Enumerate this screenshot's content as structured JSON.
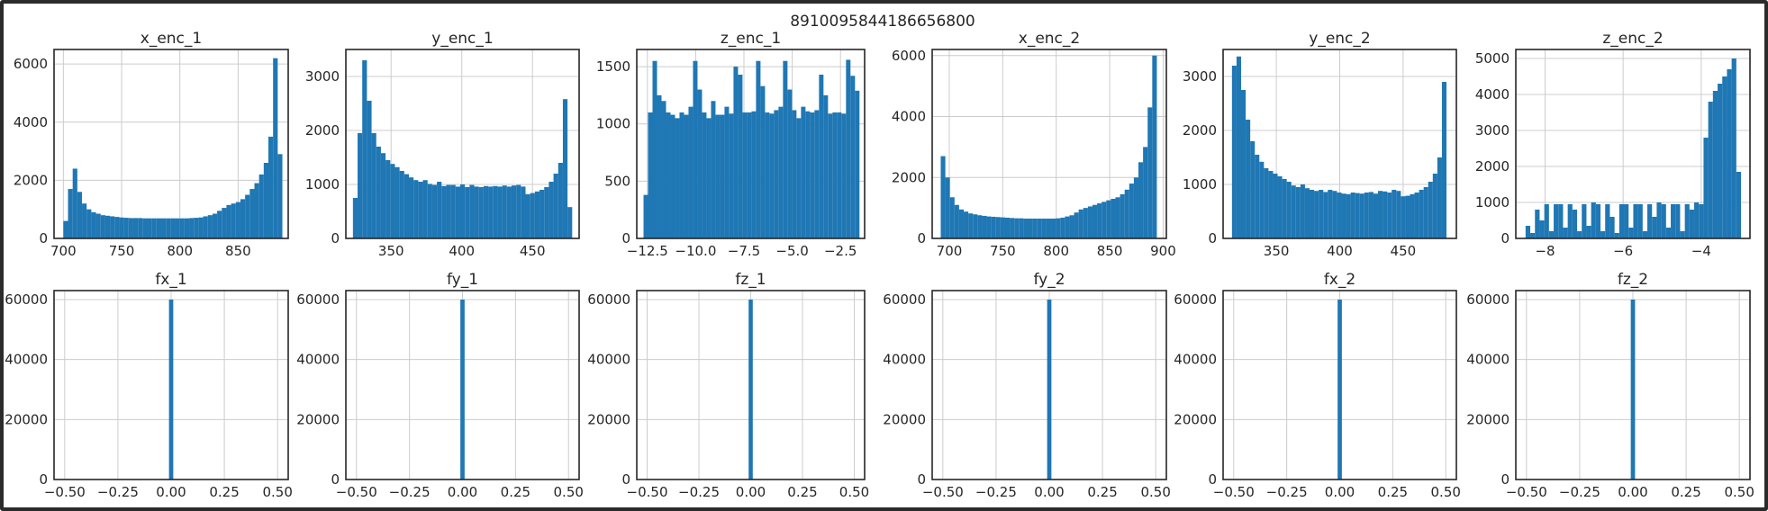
{
  "figure": {
    "suptitle": "8910095844186656800",
    "bar_color": "#1f77b4",
    "grid_color": "#cccccc",
    "axis_color": "#262626"
  },
  "chart_data": [
    {
      "type": "bar",
      "title": "x_enc_1",
      "grid": true,
      "x": [
        700,
        704,
        708,
        712,
        716,
        720,
        724,
        728,
        732,
        736,
        740,
        744,
        748,
        752,
        756,
        760,
        764,
        768,
        772,
        776,
        780,
        784,
        788,
        792,
        796,
        800,
        804,
        808,
        812,
        816,
        820,
        824,
        828,
        832,
        836,
        840,
        844,
        848,
        852,
        856,
        860,
        864,
        868,
        872,
        876,
        880,
        884
      ],
      "values": [
        600,
        1700,
        2400,
        1600,
        1200,
        1000,
        900,
        850,
        800,
        780,
        760,
        740,
        720,
        710,
        700,
        700,
        700,
        690,
        690,
        690,
        690,
        690,
        690,
        690,
        690,
        690,
        690,
        700,
        710,
        720,
        760,
        800,
        850,
        950,
        1050,
        1150,
        1200,
        1250,
        1350,
        1500,
        1700,
        1900,
        2200,
        2600,
        3500,
        6200,
        2900
      ],
      "bin_width": 4,
      "xlim": [
        692,
        893
      ],
      "ylim": [
        0,
        6500
      ],
      "xticks": [
        700,
        750,
        800,
        850
      ],
      "xticklabels": [
        "700",
        "750",
        "800",
        "850"
      ],
      "yticks": [
        0,
        2000,
        4000,
        6000
      ],
      "yticklabels": [
        "0",
        "2000",
        "4000",
        "6000"
      ]
    },
    {
      "type": "bar",
      "title": "y_enc_1",
      "grid": true,
      "x": [
        323,
        326.3,
        329.6,
        332.9,
        336.2,
        339.5,
        342.8,
        346.1,
        349.4,
        352.7,
        356,
        359.3,
        362.6,
        365.9,
        369.2,
        372.5,
        375.8,
        379.1,
        382.4,
        385.7,
        389,
        392.3,
        395.6,
        398.9,
        402.2,
        405.5,
        408.8,
        412.1,
        415.4,
        418.7,
        422,
        425.3,
        428.6,
        431.9,
        435.2,
        438.5,
        441.8,
        445.1,
        448.4,
        451.7,
        455,
        458.3,
        461.6,
        464.9,
        468.2,
        471.5,
        474.8
      ],
      "values": [
        750,
        1950,
        3300,
        2550,
        1950,
        1700,
        1580,
        1450,
        1380,
        1320,
        1250,
        1190,
        1130,
        1080,
        1050,
        1080,
        1010,
        990,
        1050,
        970,
        990,
        990,
        960,
        1000,
        950,
        990,
        960,
        950,
        970,
        960,
        970,
        960,
        980,
        960,
        980,
        990,
        960,
        820,
        840,
        870,
        900,
        950,
        1050,
        1200,
        1400,
        2580,
        580
      ],
      "bin_width": 3.3,
      "xlim": [
        318,
        483
      ],
      "ylim": [
        0,
        3500
      ],
      "xticks": [
        350,
        400,
        450
      ],
      "xticklabels": [
        "350",
        "400",
        "450"
      ],
      "yticks": [
        0,
        1000,
        2000,
        3000
      ],
      "yticklabels": [
        "0",
        "1000",
        "2000",
        "3000"
      ]
    },
    {
      "type": "bar",
      "title": "z_enc_1",
      "grid": true,
      "x": [
        -12.7,
        -12.467,
        -12.234,
        -12.001,
        -11.768,
        -11.535,
        -11.302,
        -11.069,
        -10.836,
        -10.603,
        -10.37,
        -10.137,
        -9.904,
        -9.671,
        -9.438,
        -9.205,
        -8.972,
        -8.739,
        -8.506,
        -8.273,
        -8.04,
        -7.807,
        -7.574,
        -7.341,
        -7.108,
        -6.875,
        -6.642,
        -6.409,
        -6.176,
        -5.943,
        -5.71,
        -5.477,
        -5.244,
        -5.011,
        -4.778,
        -4.545,
        -4.312,
        -4.079,
        -3.846,
        -3.613,
        -3.38,
        -3.147,
        -2.914,
        -2.681,
        -2.448,
        -2.215,
        -1.982,
        -1.749
      ],
      "values": [
        380,
        1100,
        1550,
        1250,
        1200,
        1100,
        1080,
        1050,
        1100,
        1080,
        1150,
        1550,
        1300,
        1100,
        1050,
        1200,
        1080,
        1080,
        1150,
        1090,
        1500,
        1430,
        1100,
        1100,
        1110,
        1550,
        1330,
        1100,
        1090,
        1120,
        1150,
        1550,
        1300,
        1120,
        1050,
        1150,
        1110,
        1100,
        1120,
        1430,
        1250,
        1090,
        1100,
        1100,
        1090,
        1560,
        1420,
        1290
      ],
      "bin_width": 0.233,
      "xlim": [
        -13.05,
        -1.25
      ],
      "ylim": [
        0,
        1650
      ],
      "xticks": [
        -12.5,
        -10.0,
        -7.5,
        -5.0,
        -2.5
      ],
      "xticklabels": [
        "−12.5",
        "−10.0",
        "−7.5",
        "−5.0",
        "−2.5"
      ],
      "yticks": [
        0,
        500,
        1000,
        1500
      ],
      "yticklabels": [
        "0",
        "500",
        "1000",
        "1500"
      ]
    },
    {
      "type": "bar",
      "title": "x_enc_2",
      "grid": true,
      "x": [
        692,
        696.3,
        700.6,
        704.9,
        709.2,
        713.5,
        717.8,
        722.1,
        726.4,
        730.7,
        735,
        739.3,
        743.6,
        747.9,
        752.2,
        756.5,
        760.8,
        765.1,
        769.4,
        773.7,
        778,
        782.3,
        786.6,
        790.9,
        795.2,
        799.5,
        803.8,
        808.1,
        812.4,
        816.7,
        821,
        825.3,
        829.6,
        833.9,
        838.2,
        842.5,
        846.8,
        851.1,
        855.4,
        859.7,
        864,
        868.3,
        872.6,
        876.9,
        881.2,
        885.5,
        889.8
      ],
      "values": [
        2700,
        2000,
        1350,
        1100,
        950,
        880,
        820,
        790,
        760,
        740,
        720,
        710,
        700,
        690,
        680,
        670,
        660,
        660,
        650,
        650,
        650,
        650,
        650,
        650,
        650,
        660,
        680,
        720,
        760,
        850,
        950,
        1000,
        1050,
        1100,
        1150,
        1200,
        1250,
        1300,
        1350,
        1450,
        1600,
        1800,
        2000,
        2500,
        3000,
        4300,
        6000
      ],
      "bin_width": 4.3,
      "xlim": [
        684,
        903
      ],
      "ylim": [
        0,
        6200
      ],
      "xticks": [
        700,
        750,
        800,
        850,
        900
      ],
      "xticklabels": [
        "700",
        "750",
        "800",
        "850",
        "900"
      ],
      "yticks": [
        0,
        2000,
        4000,
        6000
      ],
      "yticklabels": [
        "0",
        "2000",
        "4000",
        "6000"
      ]
    },
    {
      "type": "bar",
      "title": "y_enc_2",
      "grid": true,
      "x": [
        315,
        318.6,
        322.2,
        325.8,
        329.4,
        333,
        336.6,
        340.2,
        343.8,
        347.4,
        351,
        354.6,
        358.2,
        361.8,
        365.4,
        369,
        372.6,
        376.2,
        379.8,
        383.4,
        387,
        390.6,
        394.2,
        397.8,
        401.4,
        405,
        408.6,
        412.2,
        415.8,
        419.4,
        423,
        426.6,
        430.2,
        433.8,
        437.4,
        441,
        444.6,
        448.2,
        451.8,
        455.4,
        459,
        462.6,
        466.2,
        469.8,
        473.4,
        477,
        480.6
      ],
      "values": [
        3200,
        3370,
        2750,
        2200,
        1800,
        1550,
        1420,
        1300,
        1250,
        1200,
        1150,
        1100,
        1050,
        980,
        950,
        1000,
        930,
        900,
        880,
        900,
        860,
        900,
        880,
        850,
        830,
        820,
        850,
        840,
        830,
        850,
        860,
        830,
        880,
        870,
        850,
        900,
        880,
        780,
        790,
        820,
        850,
        900,
        950,
        1050,
        1200,
        1500,
        2900
      ],
      "bin_width": 3.6,
      "xlim": [
        308,
        492
      ],
      "ylim": [
        0,
        3500
      ],
      "xticks": [
        350,
        400,
        450
      ],
      "xticklabels": [
        "350",
        "400",
        "450"
      ],
      "yticks": [
        0,
        1000,
        2000,
        3000
      ],
      "yticklabels": [
        "0",
        "1000",
        "2000",
        "3000"
      ]
    },
    {
      "type": "bar",
      "title": "z_enc_2",
      "grid": true,
      "x": [
        -8.5,
        -8.38,
        -8.26,
        -8.14,
        -8.02,
        -7.9,
        -7.78,
        -7.66,
        -7.54,
        -7.42,
        -7.3,
        -7.18,
        -7.06,
        -6.94,
        -6.82,
        -6.7,
        -6.58,
        -6.46,
        -6.34,
        -6.22,
        -6.1,
        -5.98,
        -5.86,
        -5.74,
        -5.62,
        -5.5,
        -5.38,
        -5.26,
        -5.14,
        -5.02,
        -4.9,
        -4.78,
        -4.66,
        -4.54,
        -4.42,
        -4.3,
        -4.18,
        -4.06,
        -3.94,
        -3.82,
        -3.7,
        -3.58,
        -3.46,
        -3.34,
        -3.22,
        -3.1,
        -2.98
      ],
      "values": [
        350,
        150,
        800,
        500,
        950,
        200,
        950,
        950,
        300,
        950,
        800,
        200,
        950,
        350,
        1000,
        950,
        200,
        950,
        600,
        150,
        950,
        950,
        300,
        950,
        950,
        200,
        950,
        600,
        1000,
        950,
        300,
        950,
        950,
        200,
        950,
        800,
        1000,
        950,
        2800,
        3800,
        4100,
        4300,
        4500,
        4700,
        5000,
        1850,
        0
      ],
      "bin_width": 0.12,
      "xlim": [
        -8.75,
        -2.75
      ],
      "ylim": [
        0,
        5250
      ],
      "xticks": [
        -8,
        -6,
        -4
      ],
      "xticklabels": [
        "−8",
        "−6",
        "−4"
      ],
      "yticks": [
        0,
        1000,
        2000,
        3000,
        4000,
        5000
      ],
      "yticklabels": [
        "0",
        "1000",
        "2000",
        "3000",
        "4000",
        "5000"
      ]
    },
    {
      "type": "bar",
      "title": "fx_1",
      "grid": true,
      "x": [
        -0.01
      ],
      "values": [
        60000
      ],
      "bin_width": 0.02,
      "xlim": [
        -0.55,
        0.55
      ],
      "ylim": [
        0,
        63000
      ],
      "xticks": [
        -0.5,
        -0.25,
        0,
        0.25,
        0.5
      ],
      "xticklabels": [
        "−0.50",
        "−0.25",
        "0.00",
        "0.25",
        "0.50"
      ],
      "yticks": [
        0,
        20000,
        40000,
        60000
      ],
      "yticklabels": [
        "0",
        "20000",
        "40000",
        "60000"
      ]
    },
    {
      "type": "bar",
      "title": "fy_1",
      "grid": true,
      "x": [
        -0.01
      ],
      "values": [
        60000
      ],
      "bin_width": 0.02,
      "xlim": [
        -0.55,
        0.55
      ],
      "ylim": [
        0,
        63000
      ],
      "xticks": [
        -0.5,
        -0.25,
        0,
        0.25,
        0.5
      ],
      "xticklabels": [
        "−0.50",
        "−0.25",
        "0.00",
        "0.25",
        "0.50"
      ],
      "yticks": [
        0,
        20000,
        40000,
        60000
      ],
      "yticklabels": [
        "0",
        "20000",
        "40000",
        "60000"
      ]
    },
    {
      "type": "bar",
      "title": "fz_1",
      "grid": true,
      "x": [
        -0.01
      ],
      "values": [
        60000
      ],
      "bin_width": 0.02,
      "xlim": [
        -0.55,
        0.55
      ],
      "ylim": [
        0,
        63000
      ],
      "xticks": [
        -0.5,
        -0.25,
        0,
        0.25,
        0.5
      ],
      "xticklabels": [
        "−0.50",
        "−0.25",
        "0.00",
        "0.25",
        "0.50"
      ],
      "yticks": [
        0,
        20000,
        40000,
        60000
      ],
      "yticklabels": [
        "0",
        "20000",
        "40000",
        "60000"
      ]
    },
    {
      "type": "bar",
      "title": "fy_2",
      "grid": true,
      "x": [
        -0.01
      ],
      "values": [
        60000
      ],
      "bin_width": 0.02,
      "xlim": [
        -0.55,
        0.55
      ],
      "ylim": [
        0,
        63000
      ],
      "xticks": [
        -0.5,
        -0.25,
        0,
        0.25,
        0.5
      ],
      "xticklabels": [
        "−0.50",
        "−0.25",
        "0.00",
        "0.25",
        "0.50"
      ],
      "yticks": [
        0,
        20000,
        40000,
        60000
      ],
      "yticklabels": [
        "0",
        "20000",
        "40000",
        "60000"
      ]
    },
    {
      "type": "bar",
      "title": "fx_2",
      "grid": true,
      "x": [
        -0.01
      ],
      "values": [
        60000
      ],
      "bin_width": 0.02,
      "xlim": [
        -0.55,
        0.55
      ],
      "ylim": [
        0,
        63000
      ],
      "xticks": [
        -0.5,
        -0.25,
        0,
        0.25,
        0.5
      ],
      "xticklabels": [
        "−0.50",
        "−0.25",
        "0.00",
        "0.25",
        "0.50"
      ],
      "yticks": [
        0,
        20000,
        40000,
        60000
      ],
      "yticklabels": [
        "0",
        "20000",
        "40000",
        "60000"
      ]
    },
    {
      "type": "bar",
      "title": "fz_2",
      "grid": true,
      "x": [
        -0.01
      ],
      "values": [
        60000
      ],
      "bin_width": 0.02,
      "xlim": [
        -0.55,
        0.55
      ],
      "ylim": [
        0,
        63000
      ],
      "xticks": [
        -0.5,
        -0.25,
        0,
        0.25,
        0.5
      ],
      "xticklabels": [
        "−0.50",
        "−0.25",
        "0.00",
        "0.25",
        "0.50"
      ],
      "yticks": [
        0,
        20000,
        40000,
        60000
      ],
      "yticklabels": [
        "0",
        "20000",
        "40000",
        "60000"
      ]
    }
  ]
}
